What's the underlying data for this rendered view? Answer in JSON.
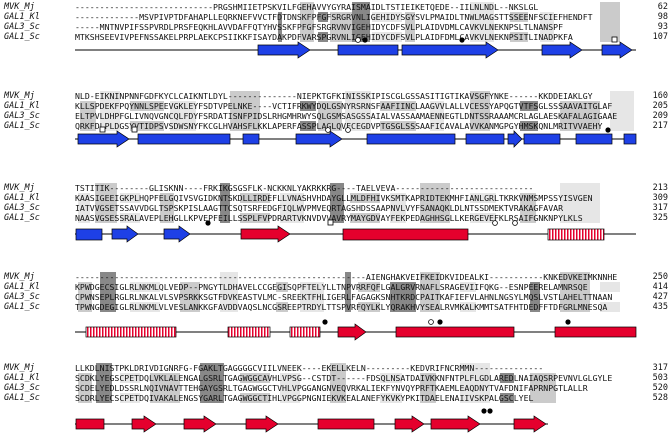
{
  "blocks": [
    {
      "rows": [
        {
          "name": "MVK_Mj",
          "seq": "----------------------------PRGSHMIIETPSKVILFGEHAVVYGYRAISMAIDLTSTIEIKETQEDE--IILNLNDL--NKSLGL",
          "end": "62"
        },
        {
          "name": "GAL1_Kl",
          "seq": "-------------MSVPIVPTDFAHAPLLEQRKNEFVVCTFDTDNSKFPFGFSRGRVNLIGEHIDYSGYSVLPMAIDLTNWLMAGSTTSSEENFSCIEFHENDFT",
          "end": "98"
        },
        {
          "name": "GAL3_Sc",
          "seq": "-----MNTNVPIFSSPVRDLPRSFEQKHLAVVDAFFQTYHVSSKFPFGFSRGRVNVIGEHIDYCDFSVLPLAIDVDMLCAVKVLNEKNPSLTLNANSPF",
          "end": "93"
        },
        {
          "name": "GAL1_Sc",
          "seq": "MTKSHSEEVIVPEFNSSAKELPRPLAEKCPSIIKKFISAYDAKPDFVARSPGRVNLIGEHIDYCDFSVLPLAIDFDMLCAVKVLNEKNPSITLINADPKFA",
          "end": "107"
        }
      ],
      "marks": {
        "open": [
          {
            "label": "open-circle"
          },
          {
            "label": "open-square"
          }
        ],
        "filled": [
          {
            "label": "filled-circle"
          },
          {
            "label": "filled-circle"
          }
        ]
      }
    },
    {
      "rows": [
        {
          "name": "MVK_Mj",
          "seq": "NLD-EIKNINPNNFGDFKYCLCAIKNTLDYL--------------NIEPKTGFKINISSKIPISCGLGSSASITIGTIKAVSGFYNKE------KKDDEIAKLGY",
          "end": "160"
        },
        {
          "name": "GAL1_Kl",
          "seq": "KLLSPDEKFPQYNNLSPEEVGKLEYFSDTVPELNKE----VCTIFRKWYDQLGSNYRSRNSFAAFIINCLAAGVVLALLVCESSYAPQGTVTFSGLSSSAAVAITGLAF",
          "end": "205"
        },
        {
          "name": "GAL3_Sc",
          "seq": "ELTPVLDHPFGLIVNQVGNCQLFDYFSRDATISNFPIDSLRHGMHRWYSQLGSMSASGSSAIALVASSAAMAENNEGTLDNTSSRAAAMCRLAGLAESKAFALAGIGAAE",
          "end": "209"
        },
        {
          "name": "GAL1_Sc",
          "seq": "QRKFDLPLDGSYVTIDPSVSDWSNYFKCGLHVAHSFLKKLAPERFASSPLAGLQVFCEGDVPTGSGLSSSAAFICAVALAVVKANMGPGYHMSKQNLMRITVVAEHY",
          "end": "217"
        }
      ],
      "marks": {}
    },
    {
      "rows": [
        {
          "name": "MVK_Mj",
          "seq": "TSTITIK--------GLISKNN----FRKIKGSGSFLK-NCKKNLYAKRKKRG----TAELVEVA----------------------------",
          "end": "213"
        },
        {
          "name": "GAL1_Kl",
          "seq": "KAASIGEEIGKPLHQPFELGQIVSVGIDKNTSKDLLIRDEFLLVNASHVHDAYGLLMLDFHIVKSMTKAPRIDTEKMHFIANLGRLTKRKVNMSMPSSYISVGEN",
          "end": "309"
        },
        {
          "name": "GAL3_Sc",
          "seq": "IATVVGSETSSAVVDGLTSPSKPISLAAGTTCSQTSRFEDGFIQLWVPMVEQRTAGSHDSSAAPNVLVYFSANAQKLDLNTSSDMEKTVRAKAGFAVAR",
          "end": "317"
        },
        {
          "name": "GAL1_Sc",
          "seq": "NAASVGSESSRALAVEPLEHGLLKPVEPFEILLSSPLFVPDRARTVKNVDVVAVRYMAYGDVAYFEKPEDAGHHSGLLKERGEVEFKLRSAIFGNKNPYLKLS",
          "end": "325"
        }
      ],
      "marks": {}
    },
    {
      "rows": [
        {
          "name": "MVK_Mj",
          "seq": "-----------------------------------------------------------AIENGHAKVEIFKEIDKVIDEALKI-----------KNKEDVKEIMKNNHE",
          "end": "250"
        },
        {
          "name": "GAL1_Kl",
          "seq": "KPWDGECSIGLRLNKMLQLVEDP--PNGYTLDHAVELCCGEGISQPFTELYLLTNPVRRFQFLGALGRVRNAFLSRAGEVIIFQKG--ESNPEERELAMNRSQE",
          "end": "414"
        },
        {
          "name": "GAL3_Sc",
          "seq": "CPWNSEPLRGLRLNKALVLSVPSRKKSGTFDVKEASTVLMC-SREEKTFHLIGERLFAGAGKSNHTKRDCPAITKAFIEFVLAHNLNGSYLMQSLVSTLAHELTTNAAN",
          "end": "427"
        },
        {
          "name": "GAL1_Sc",
          "seq": "TPWNGDEGIGLRLNKMLVLVESLANKKGFAVDDVAQSLNCGSREEPTRDYLTTSPVRFQYLKLYQRAKHVYSEALRVMKALKMMTSATFHTDEDFFTDFGRLMNESQA",
          "end": "435"
        }
      ],
      "marks": {}
    },
    {
      "rows": [
        {
          "name": "MVK_Mj",
          "seq": "LLKDLNISTPKLDRIVDIGNRFG-FGAKLTGAGGGGCVIILVNEEK----EKELLKELN---------KEDVRIFNCRMMN--------------",
          "end": "317"
        },
        {
          "name": "GAL1_Kl",
          "seq": "SCDKLYEGSCPETDQLVKLALENGALGSRLTGAGWGGCAVHLVPSG--CSTDT------FDSQLNSATDAIVKKNFNTPLFLGDLAREDLNAIAQSRPEVNVLGLGYLE",
          "end": "503"
        },
        {
          "name": "GAL3_Sc",
          "seq": "SCDELYEDLDSSRLNQIVNAVTTEHGAYGSRLTGAGWGGCTVHLVPGGANGNVEQVRKALIEKFYNVQYPRFTKAEMLEAQDNYTVAFDNIFAPRNPGTLALLR",
          "end": "520"
        },
        {
          "name": "GAL1_Sc",
          "seq": "SCDRLYECSCPETDQIVAKALENGSYGARLTGAGWGGCTIHLVPGGPNGNIEKVKEALANEFYKVKYPKITDAELENAIIVSKPALGSCLYEL",
          "end": "528"
        }
      ],
      "marks": {}
    }
  ],
  "colors": {
    "helix": "#e5002d",
    "strand": "#1e40e6",
    "stripe": "#f3a0ae",
    "outline": "#000000"
  }
}
